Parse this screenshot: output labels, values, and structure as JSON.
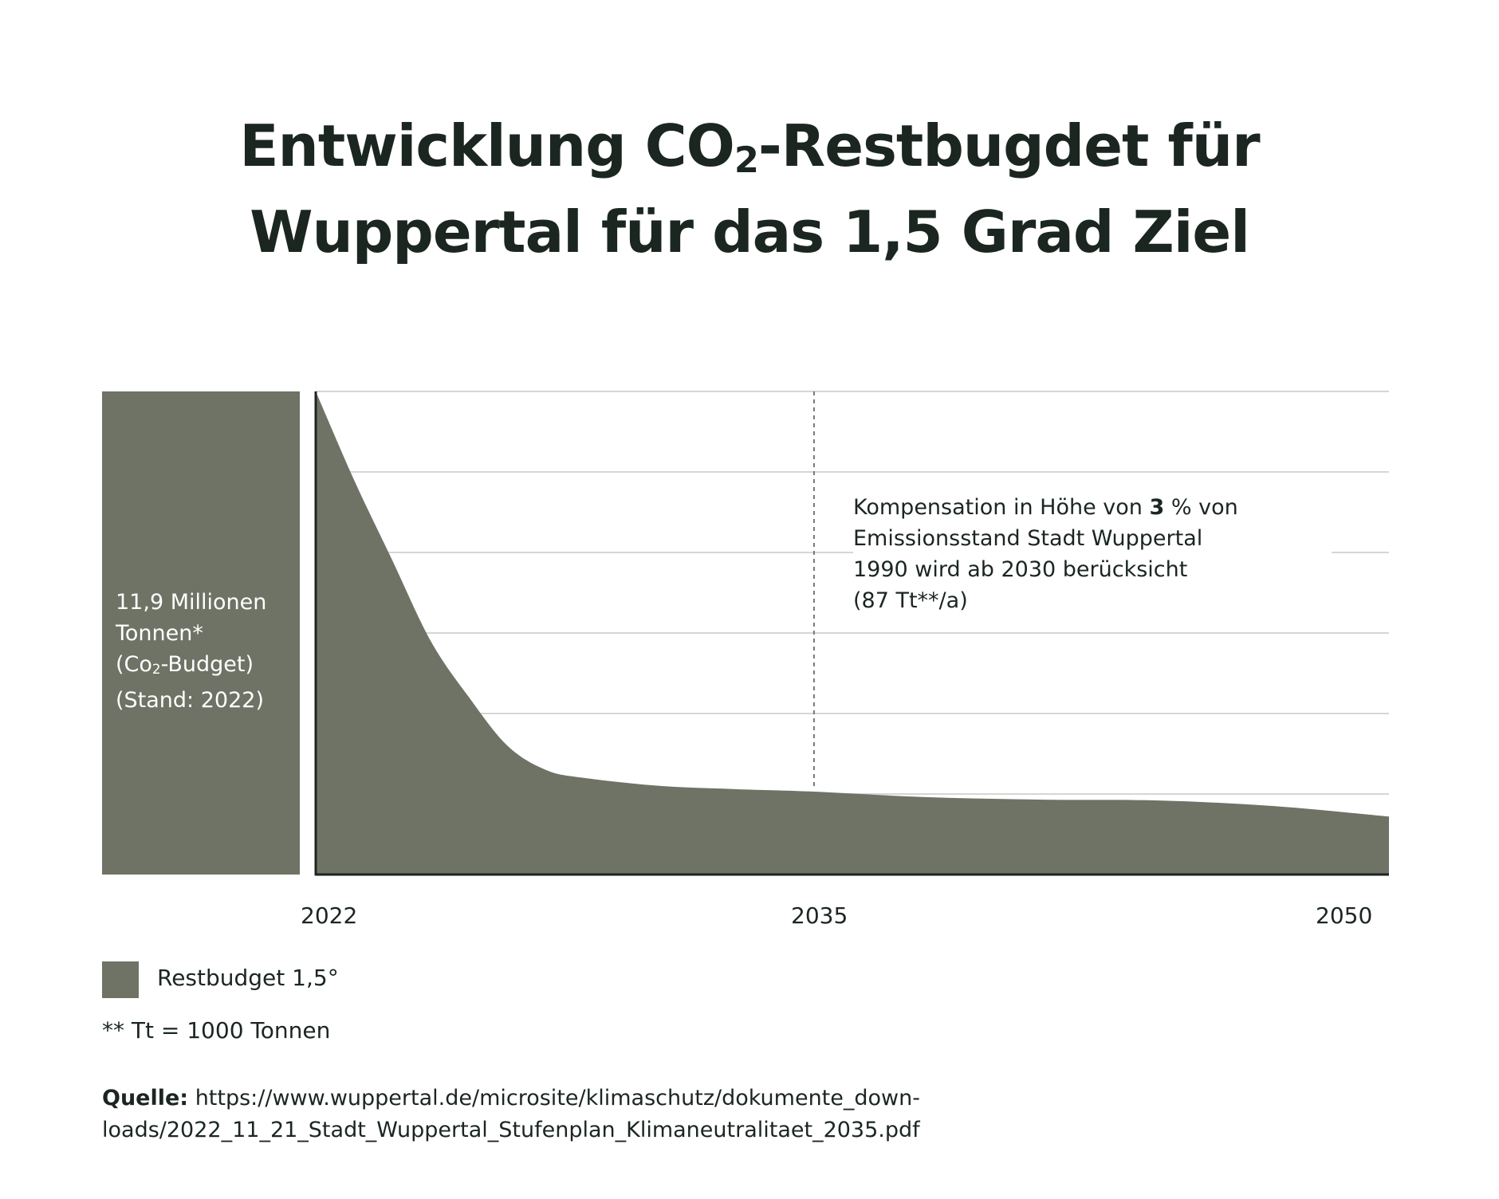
{
  "title_line1_a": "Entwicklung CO",
  "title_line1_sub": "2",
  "title_line1_b": "-Restbugdet für",
  "title_line2": "Wuppertal für das 1,5 Grad Ziel",
  "budget_box": {
    "line1": "11,9 Millionen",
    "line2": "Tonnen*",
    "line3_a": "(Co",
    "line3_sub": "2",
    "line3_b": "-Budget)",
    "line4": "(Stand: 2022)"
  },
  "annotation": {
    "line1_a": "Kompensation in Höhe von ",
    "line1_bold": "3",
    "line1_b": " % von",
    "line2": "Emissionsstand Stadt Wuppertal",
    "line3": "1990 wird ab 2030 berücksicht",
    "line4": "(87 Tt**/a)"
  },
  "legend": {
    "label": "Restbudget 1,5°",
    "color": "#6e7365"
  },
  "footnote": "** Tt = 1000 Tonnen",
  "source": {
    "label": "Quelle:",
    "line1": " https://www.wuppertal.de/microsite/klimaschutz/dokumente_down-",
    "line2": "loads/2022_11_21_Stadt_Wuppertal_Stufenplan_Klimaneutralitaet_2035.pdf"
  },
  "colors": {
    "area": "#6e7365",
    "text": "#1b2621",
    "grid": "#c8c8c8",
    "axis": "#1b2621"
  },
  "chart_data": {
    "type": "area",
    "x_ticks": [
      "2022",
      "2035",
      "2050"
    ],
    "xlim": [
      2022,
      2050
    ],
    "ylim": [
      0,
      6
    ],
    "grid": true,
    "ygrid_count": 6,
    "reference_line_x": 2035,
    "series": [
      {
        "name": "Restbudget 1,5°",
        "x": [
          2022,
          2023,
          2024,
          2025,
          2026,
          2027,
          2028,
          2029,
          2031,
          2033,
          2035,
          2038,
          2041,
          2044,
          2047,
          2050
        ],
        "values": [
          6.0,
          4.9,
          3.9,
          2.9,
          2.2,
          1.6,
          1.3,
          1.2,
          1.1,
          1.06,
          1.03,
          0.96,
          0.93,
          0.92,
          0.85,
          0.72
        ]
      }
    ]
  }
}
